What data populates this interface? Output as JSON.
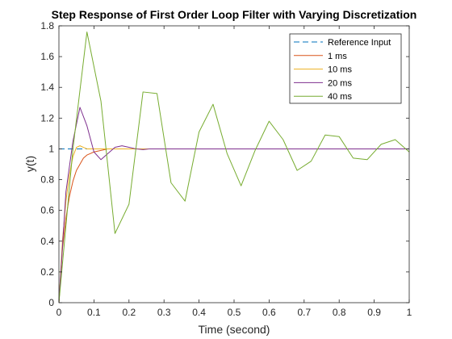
{
  "chart_data": {
    "type": "line",
    "title": "Step Response of First Order Loop Filter with Varying Discretization",
    "xlabel": "Time (second)",
    "ylabel": "y(t)",
    "xlim": [
      0,
      1
    ],
    "ylim": [
      0,
      1.8
    ],
    "xticks": [
      "0",
      "0.1",
      "0.2",
      "0.3",
      "0.4",
      "0.5",
      "0.6",
      "0.7",
      "0.8",
      "0.9",
      "1"
    ],
    "yticks": [
      "0",
      "0.2",
      "0.4",
      "0.6",
      "0.8",
      "1",
      "1.2",
      "1.4",
      "1.6",
      "1.8"
    ],
    "grid": false,
    "legend_position": "top-right",
    "series": [
      {
        "name": "Reference Input",
        "color": "#0072BD",
        "dash": "dashed",
        "x": [
          0,
          1
        ],
        "y": [
          1,
          1
        ]
      },
      {
        "name": "1 ms",
        "color": "#D95319",
        "dash": "solid",
        "x": [
          0,
          0.01,
          0.02,
          0.03,
          0.04,
          0.05,
          0.06,
          0.07,
          0.08,
          0.09,
          0.1,
          0.12,
          0.14,
          0.16,
          0.2,
          0.3,
          0.5,
          1
        ],
        "y": [
          0,
          0.35,
          0.55,
          0.69,
          0.79,
          0.86,
          0.9,
          0.94,
          0.96,
          0.97,
          0.98,
          0.99,
          1.0,
          1.0,
          1.0,
          1.0,
          1.0,
          1.0
        ]
      },
      {
        "name": "10 ms",
        "color": "#EDB120",
        "dash": "solid",
        "x": [
          0,
          0.01,
          0.02,
          0.03,
          0.04,
          0.05,
          0.06,
          0.07,
          0.08,
          0.1,
          0.15,
          0.2,
          0.3,
          0.5,
          1
        ],
        "y": [
          0,
          0.4,
          0.66,
          0.83,
          0.95,
          1.01,
          1.02,
          1.01,
          1.0,
          1.0,
          1.0,
          1.0,
          1.0,
          1.0,
          1.0
        ]
      },
      {
        "name": "20 ms",
        "color": "#7E2F8E",
        "dash": "solid",
        "x": [
          0,
          0.02,
          0.04,
          0.06,
          0.08,
          0.1,
          0.12,
          0.14,
          0.16,
          0.18,
          0.2,
          0.22,
          0.24,
          0.26,
          0.3,
          0.4,
          0.5,
          0.6,
          0.7,
          0.8,
          0.9,
          1.0
        ],
        "y": [
          0,
          0.72,
          1.05,
          1.27,
          1.15,
          0.98,
          0.93,
          0.97,
          1.01,
          1.02,
          1.01,
          1.0,
          0.995,
          1.0,
          1.0,
          1.0,
          1.0,
          1.0,
          1.0,
          1.0,
          1.0,
          1.0
        ]
      },
      {
        "name": "40 ms",
        "color": "#77AC30",
        "dash": "solid",
        "x": [
          0,
          0.04,
          0.08,
          0.12,
          0.16,
          0.2,
          0.24,
          0.28,
          0.32,
          0.36,
          0.4,
          0.44,
          0.48,
          0.52,
          0.56,
          0.6,
          0.64,
          0.68,
          0.72,
          0.76,
          0.8,
          0.84,
          0.88,
          0.92,
          0.96,
          1.0
        ],
        "y": [
          0,
          1.0,
          1.76,
          1.31,
          0.45,
          0.64,
          1.37,
          1.36,
          0.78,
          0.66,
          1.11,
          1.29,
          0.97,
          0.76,
          0.99,
          1.18,
          1.06,
          0.86,
          0.92,
          1.09,
          1.08,
          0.94,
          0.93,
          1.03,
          1.06,
          0.98
        ]
      }
    ]
  }
}
